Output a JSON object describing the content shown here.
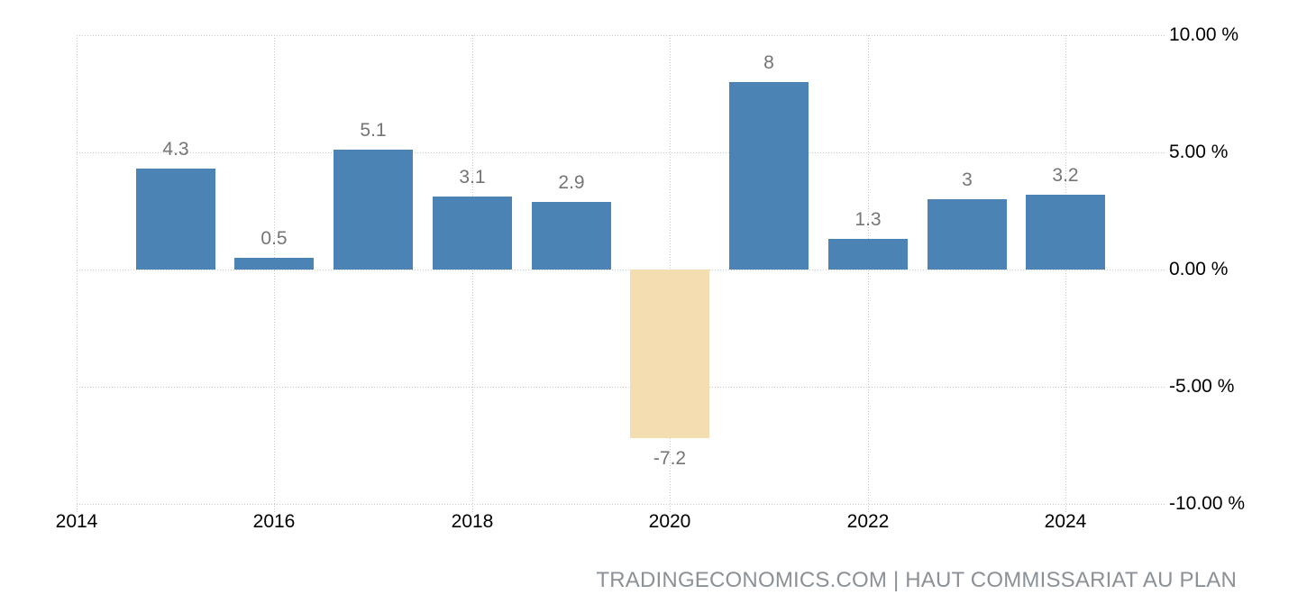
{
  "chart_data": {
    "type": "bar",
    "categories": [
      2015,
      2016,
      2017,
      2018,
      2019,
      2020,
      2021,
      2022,
      2023,
      2024
    ],
    "values": [
      4.3,
      0.5,
      5.1,
      3.1,
      2.9,
      -7.2,
      8,
      1.3,
      3,
      3.2
    ],
    "bar_labels": [
      "4.3",
      "0.5",
      "5.1",
      "3.1",
      "2.9",
      "-7.2",
      "8",
      "1.3",
      "3",
      "3.2"
    ],
    "x_ticks": [
      2014,
      2016,
      2018,
      2020,
      2022,
      2024
    ],
    "x_tick_labels": [
      "2014",
      "2016",
      "2018",
      "2020",
      "2022",
      "2024"
    ],
    "y_ticks": [
      10,
      5,
      0,
      -5,
      -10
    ],
    "y_tick_labels": [
      "10.00 %",
      "5.00 %",
      "0.00 %",
      "-5.00 %",
      "-10.00 %"
    ],
    "ylim": [
      -10,
      10
    ],
    "xlim": [
      2014,
      2025
    ],
    "grid": true,
    "legend": false,
    "y_axis_position": "right",
    "colors": {
      "bar_positive": "#4b83b5",
      "bar_negative": "#f3ddb1",
      "grid": "#c9c9c9",
      "value_label": "#757575",
      "axis_label": "#000000",
      "attribution": "#8b9196"
    }
  },
  "attribution": {
    "text": "TRADINGECONOMICS.COM | HAUT COMMISSARIAT AU PLAN"
  }
}
